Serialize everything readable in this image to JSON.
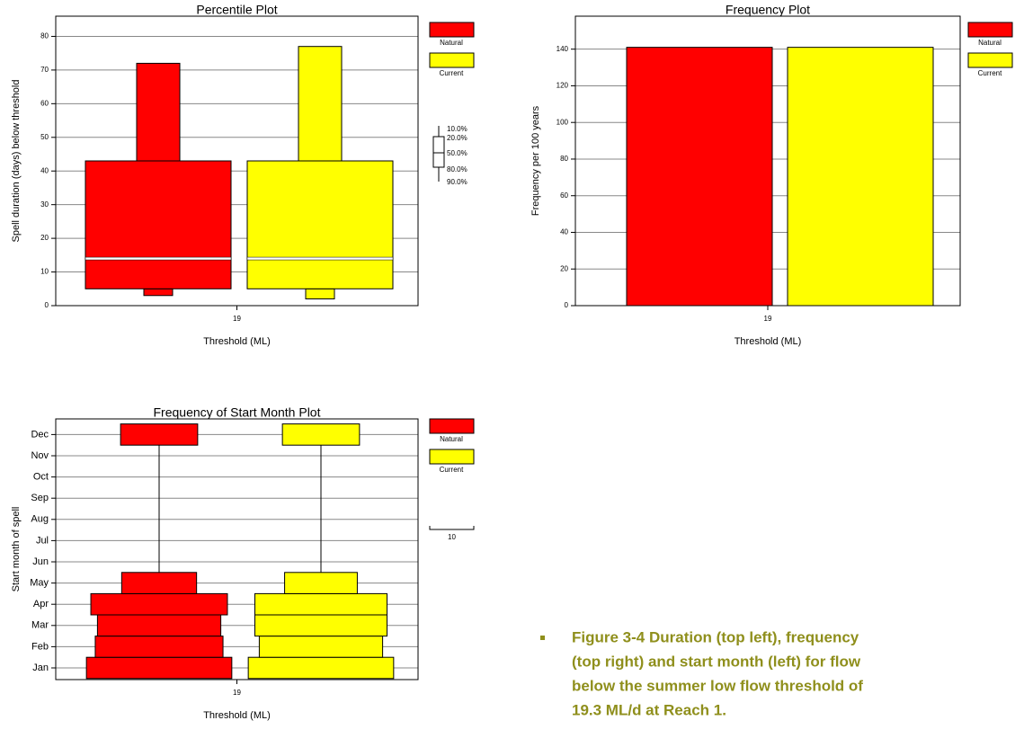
{
  "chart_data": [
    {
      "type": "box",
      "title": "Percentile Plot",
      "x_label": "Threshold (ML)",
      "y_label": "Spell duration (days) below threshold",
      "categories": [
        "19"
      ],
      "percentile_labels": [
        "10.0%",
        "20.0%",
        "50.0%",
        "80.0%",
        "90.0%"
      ],
      "series": [
        {
          "name": "Natural",
          "color": "#ff0000",
          "values": [
            3,
            5,
            14,
            43,
            72
          ]
        },
        {
          "name": "Current",
          "color": "#ffff00",
          "values": [
            2,
            5,
            14,
            43,
            77
          ]
        }
      ],
      "ylim": [
        0,
        86
      ],
      "yticks": [
        0,
        10,
        20,
        30,
        40,
        50,
        60,
        70,
        80
      ],
      "grid": true
    },
    {
      "type": "bar",
      "title": "Frequency Plot",
      "x_label": "Threshold (ML)",
      "y_label": "Frequency per 100 years",
      "categories": [
        "19"
      ],
      "series": [
        {
          "name": "Natural",
          "color": "#ff0000",
          "values": [
            141
          ]
        },
        {
          "name": "Current",
          "color": "#ffff00",
          "values": [
            141
          ]
        }
      ],
      "ylim": [
        0,
        158
      ],
      "yticks": [
        0,
        20,
        40,
        60,
        80,
        100,
        120,
        140
      ],
      "grid": true
    },
    {
      "type": "month_frequency",
      "title": "Frequency of Start Month Plot",
      "x_label": "Threshold (ML)",
      "y_label": "Start month of spell",
      "x_category": "19",
      "categories": [
        "Jan",
        "Feb",
        "Mar",
        "Apr",
        "May",
        "Jun",
        "Jul",
        "Aug",
        "Sep",
        "Oct",
        "Nov",
        "Dec"
      ],
      "series": [
        {
          "name": "Natural",
          "color": "#ff0000",
          "values": [
            33,
            29,
            28,
            31,
            17,
            0,
            0,
            0,
            0,
            0,
            0,
            17.5
          ]
        },
        {
          "name": "Current",
          "color": "#ffff00",
          "values": [
            33,
            28,
            30,
            30,
            16.5,
            0,
            0,
            0,
            0,
            0,
            0,
            17.5
          ]
        }
      ],
      "scale_bar": 10,
      "grid": true
    }
  ],
  "caption": {
    "lines": [
      "Figure 3-4 Duration (top left), frequency",
      "(top right) and start month (left) for flow",
      "below the summer low flow threshold of",
      "19.3 ML/d at Reach 1."
    ]
  }
}
